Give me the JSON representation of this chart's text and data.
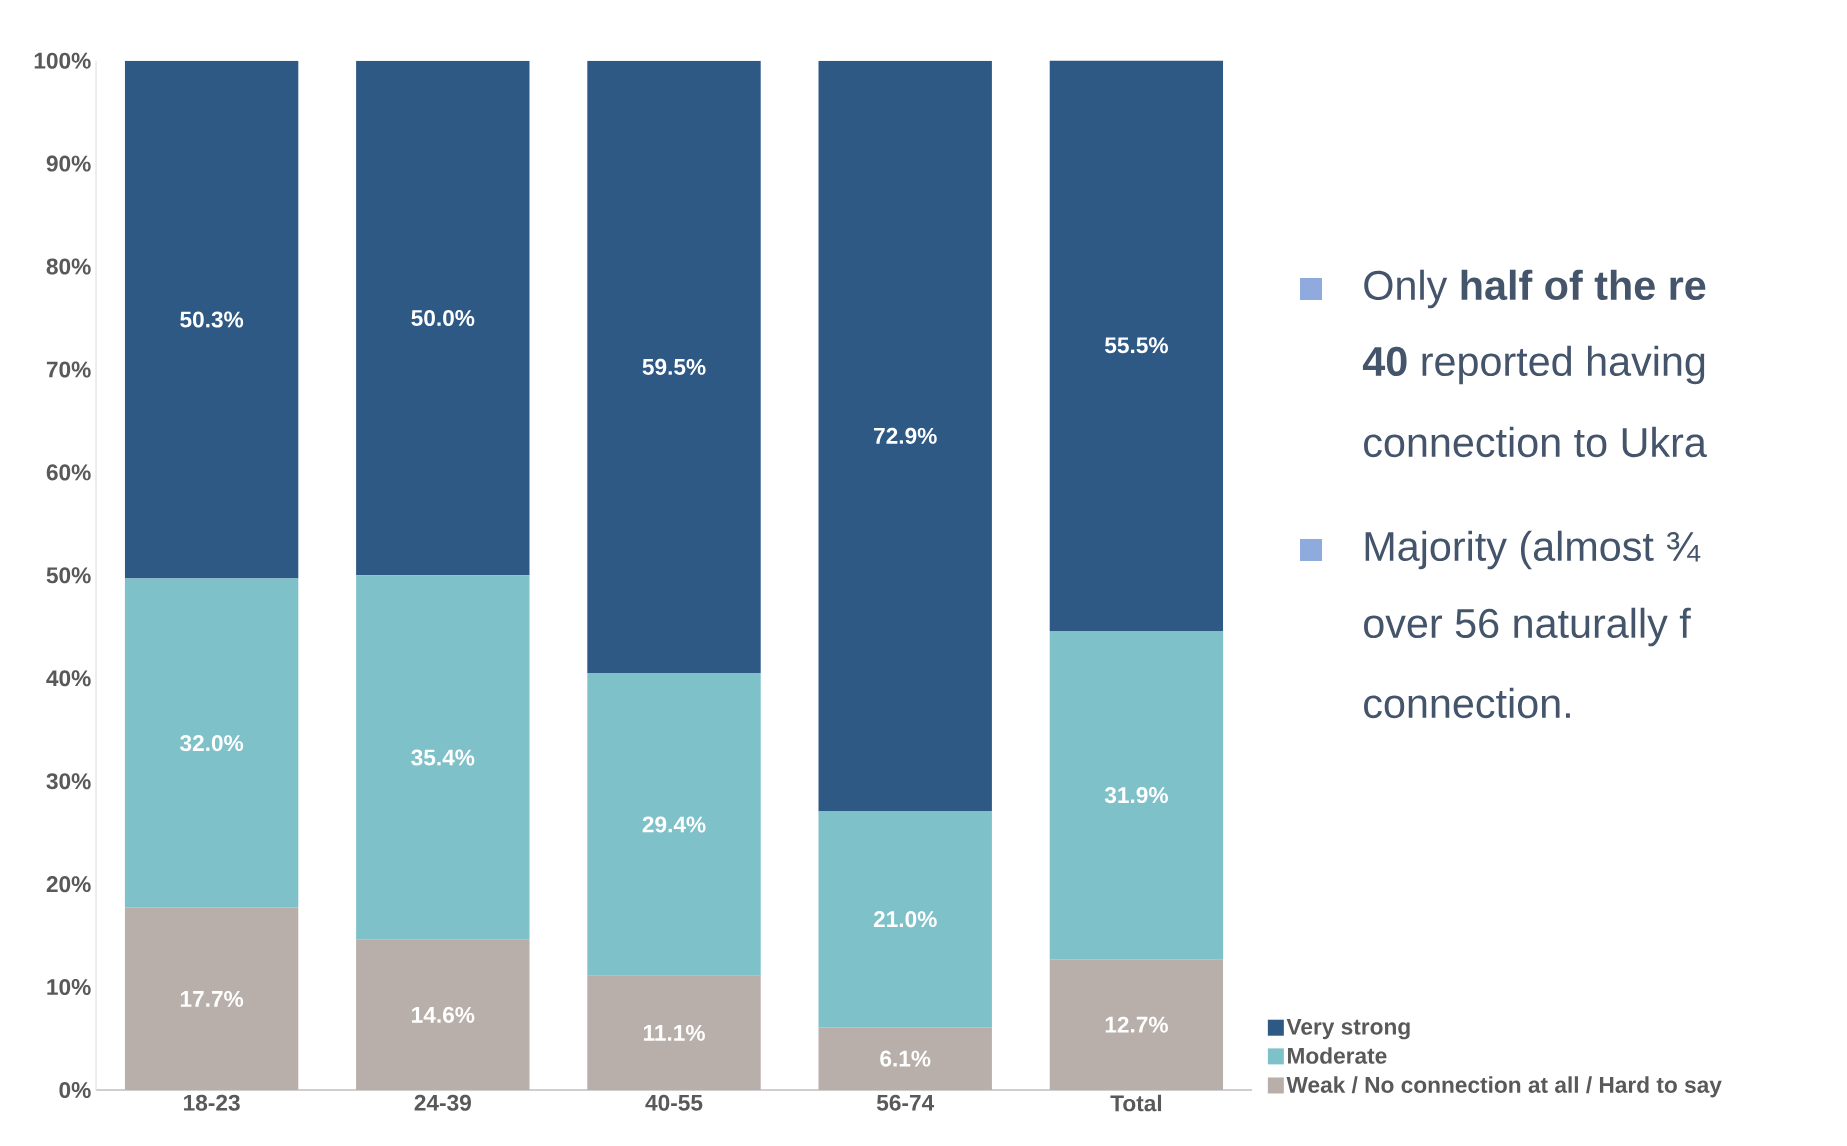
{
  "chart_data": {
    "type": "bar",
    "stacked": true,
    "categories": [
      "18-23",
      "24-39",
      "40-55",
      "56-74",
      "Total"
    ],
    "series": [
      {
        "name": "Weak / No connection at all / Hard to say",
        "color": "#b9afaa",
        "values": [
          17.7,
          14.6,
          11.1,
          6.1,
          12.7
        ],
        "value_labels": [
          "17.7%",
          "14.6%",
          "11.1%",
          "6.1%",
          "12.7%"
        ]
      },
      {
        "name": "Moderate",
        "color": "#7fc1c9",
        "values": [
          32.0,
          35.4,
          29.4,
          21.0,
          31.9
        ],
        "value_labels": [
          "32.0%",
          "35.4%",
          "29.4%",
          "21.0%",
          "31.9%"
        ]
      },
      {
        "name": "Very strong",
        "color": "#2e5985",
        "values": [
          50.3,
          50.0,
          59.5,
          72.9,
          55.5
        ],
        "value_labels": [
          "50.3%",
          "50.0%",
          "59.5%",
          "72.9%",
          "55.5%"
        ]
      }
    ],
    "ylim": [
      0,
      100
    ],
    "yticks": [
      {
        "value": 0,
        "label": "0%"
      },
      {
        "value": 10,
        "label": "10%"
      },
      {
        "value": 20,
        "label": "20%"
      },
      {
        "value": 30,
        "label": "30%"
      },
      {
        "value": 40,
        "label": "40%"
      },
      {
        "value": 50,
        "label": "50%"
      },
      {
        "value": 60,
        "label": "60%"
      },
      {
        "value": 70,
        "label": "70%"
      },
      {
        "value": 80,
        "label": "80%"
      },
      {
        "value": 90,
        "label": "90%"
      },
      {
        "value": 100,
        "label": "100%"
      }
    ],
    "legend": "bottom right",
    "annotations": [
      "Only **half of the re**",
      "**40** reported having",
      "connection to Ukra",
      "Majority (almost ¾",
      "over 56 naturally f",
      "connection."
    ]
  }
}
